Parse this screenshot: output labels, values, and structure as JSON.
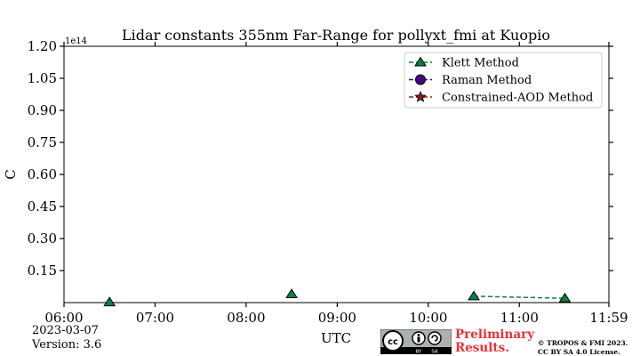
{
  "chart_data": {
    "type": "scatter",
    "title": "Lidar constants 355nm Far-Range for pollyxt_fmi at Kuopio",
    "xlabel": "UTC",
    "ylabel": "C",
    "y_multiplier_label": "1e14",
    "x_tick_labels": [
      "06:00",
      "07:00",
      "08:00",
      "09:00",
      "10:00",
      "11:00",
      "11:59"
    ],
    "x_tick_hours": [
      6,
      7,
      8,
      9,
      10,
      11,
      11.9833
    ],
    "xlim": [
      6,
      11.9833
    ],
    "ylim": [
      0,
      1.2
    ],
    "y_tick_values": [
      0.15,
      0.3,
      0.45,
      0.6,
      0.75,
      0.9,
      1.05,
      1.2
    ],
    "y_tick_labels": [
      "0.15",
      "0.30",
      "0.45",
      "0.60",
      "0.75",
      "0.90",
      "1.05",
      "1.20"
    ],
    "legend_position": "top-right",
    "grid": false,
    "series": [
      {
        "name": "Klett Method",
        "marker": "triangle",
        "color": "#00843f",
        "line_style": "dashed",
        "points": [
          {
            "x": 6.5,
            "y": 0.002
          },
          {
            "x": 8.5,
            "y": 0.04
          },
          {
            "x": 10.5,
            "y": 0.03
          },
          {
            "x": 11.5,
            "y": 0.02
          }
        ],
        "connected_segments": [
          [
            2,
            3
          ]
        ]
      },
      {
        "name": "Raman Method",
        "marker": "circle",
        "color": "#4b0082",
        "line_style": "dashed",
        "points": []
      },
      {
        "name": "Constrained-AOD Method",
        "marker": "star",
        "color": "#8b1a1a",
        "line_style": "dashed",
        "points": []
      }
    ]
  },
  "footer": {
    "date": "2023-03-07",
    "version": "Version: 3.6",
    "preliminary_line1": "Preliminary",
    "preliminary_line2": "Results.",
    "copyright_line1": "© TROPOS & FMI 2023.",
    "copyright_line2": "CC BY SA 4.0 License.",
    "license_badge": {
      "icon": "cc-by-sa-icon",
      "color": "#aab2ab"
    }
  }
}
